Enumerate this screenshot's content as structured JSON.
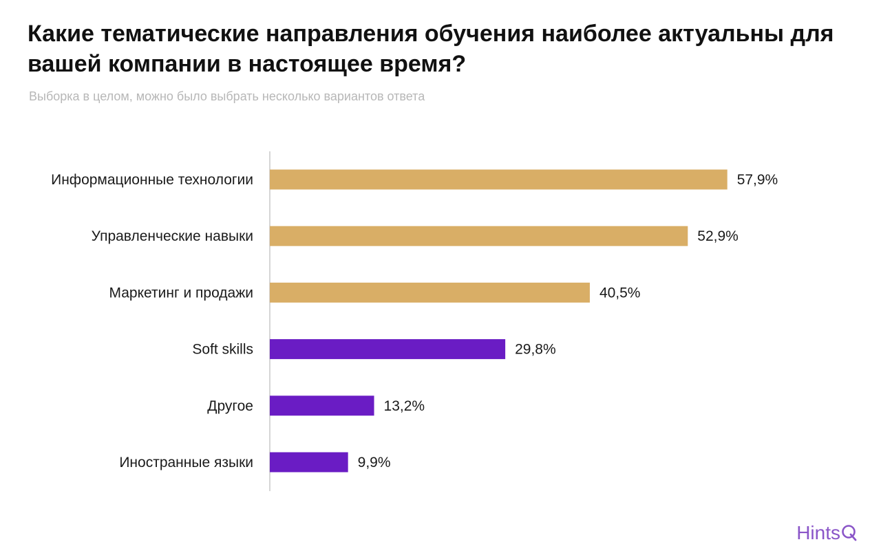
{
  "title": "Какие тематические направления обучения наиболее актуальны для вашей компании в настоящее время?",
  "subtitle": "Выборка в целом, можно было выбрать несколько вариантов ответа",
  "brand": {
    "text": "Hints",
    "icon": "magnifier-q-icon"
  },
  "colors": {
    "gold": "#D9AE66",
    "purple": "#6A1CC4",
    "axis": "#d6d6d6",
    "brand": "#8A55C8"
  },
  "chart_data": {
    "type": "bar",
    "orientation": "horizontal",
    "categories": [
      "Информационные технологии",
      "Управленческие навыки",
      "Маркетинг и продажи",
      "Soft skills",
      "Другое",
      "Иностранные языки"
    ],
    "values": [
      57.9,
      52.9,
      40.5,
      29.8,
      13.2,
      9.9
    ],
    "value_labels": [
      "57,9%",
      "52,9%",
      "40,5%",
      "29,8%",
      "13,2%",
      "9,9%"
    ],
    "bar_colors": [
      "#D9AE66",
      "#D9AE66",
      "#D9AE66",
      "#6A1CC4",
      "#6A1CC4",
      "#6A1CC4"
    ],
    "unit": "%",
    "xlim": [
      0,
      100
    ],
    "grid": false,
    "legend": "none"
  }
}
